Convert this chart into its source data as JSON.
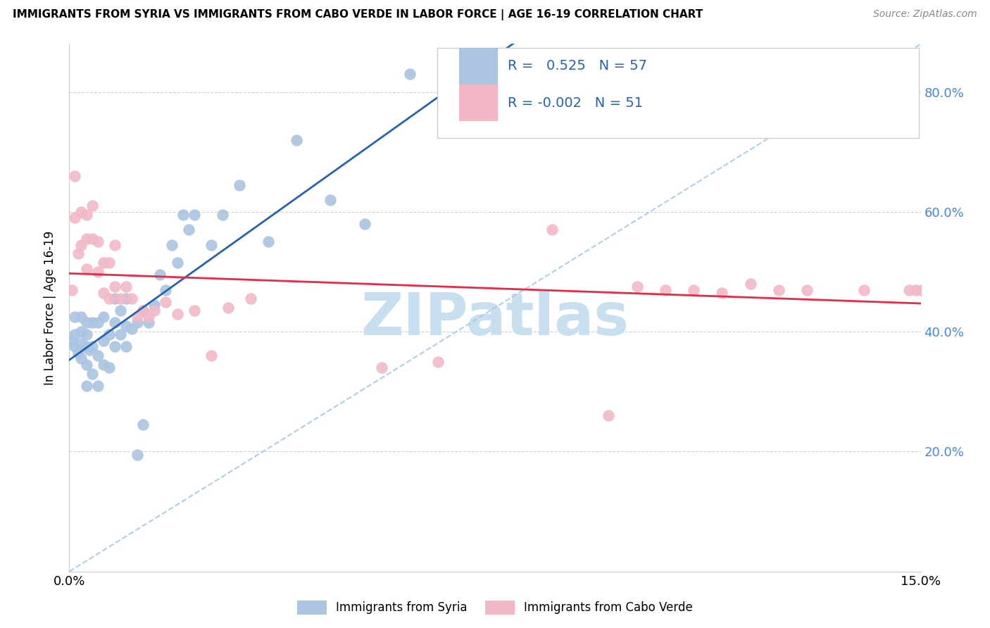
{
  "title": "IMMIGRANTS FROM SYRIA VS IMMIGRANTS FROM CABO VERDE IN LABOR FORCE | AGE 16-19 CORRELATION CHART",
  "source": "Source: ZipAtlas.com",
  "ylabel": "In Labor Force | Age 16-19",
  "xlim": [
    0.0,
    0.15
  ],
  "ylim": [
    0.0,
    0.88
  ],
  "ytick_vals": [
    0.2,
    0.4,
    0.6,
    0.8
  ],
  "legend_r_syria": "0.525",
  "legend_n_syria": "57",
  "legend_r_cabo": "-0.002",
  "legend_n_cabo": "51",
  "syria_color": "#aac4e2",
  "cabo_color": "#f2b8c6",
  "syria_line_color": "#2563b0",
  "cabo_line_color": "#e8294a",
  "diagonal_color": "#a8c8e8",
  "watermark_color": "#c8dff0",
  "syria_x": [
    0.0005,
    0.001,
    0.001,
    0.001,
    0.0015,
    0.002,
    0.002,
    0.002,
    0.002,
    0.003,
    0.003,
    0.003,
    0.003,
    0.003,
    0.0035,
    0.004,
    0.004,
    0.004,
    0.005,
    0.005,
    0.005,
    0.006,
    0.006,
    0.006,
    0.007,
    0.007,
    0.008,
    0.008,
    0.008,
    0.009,
    0.009,
    0.01,
    0.01,
    0.01,
    0.011,
    0.012,
    0.012,
    0.013,
    0.013,
    0.014,
    0.015,
    0.016,
    0.017,
    0.018,
    0.019,
    0.02,
    0.021,
    0.022,
    0.025,
    0.027,
    0.03,
    0.035,
    0.04,
    0.046,
    0.052,
    0.06,
    0.07
  ],
  "syria_y": [
    0.385,
    0.375,
    0.395,
    0.425,
    0.365,
    0.355,
    0.38,
    0.4,
    0.425,
    0.31,
    0.345,
    0.375,
    0.395,
    0.415,
    0.37,
    0.33,
    0.375,
    0.415,
    0.31,
    0.36,
    0.415,
    0.345,
    0.385,
    0.425,
    0.34,
    0.395,
    0.375,
    0.415,
    0.455,
    0.395,
    0.435,
    0.375,
    0.41,
    0.455,
    0.405,
    0.195,
    0.415,
    0.245,
    0.435,
    0.415,
    0.445,
    0.495,
    0.47,
    0.545,
    0.515,
    0.595,
    0.57,
    0.595,
    0.545,
    0.595,
    0.645,
    0.55,
    0.72,
    0.62,
    0.58,
    0.83,
    0.765
  ],
  "cabo_x": [
    0.0005,
    0.001,
    0.001,
    0.0015,
    0.002,
    0.002,
    0.003,
    0.003,
    0.003,
    0.004,
    0.004,
    0.005,
    0.005,
    0.006,
    0.006,
    0.007,
    0.007,
    0.008,
    0.008,
    0.009,
    0.01,
    0.011,
    0.012,
    0.013,
    0.014,
    0.015,
    0.017,
    0.019,
    0.022,
    0.025,
    0.028,
    0.032,
    0.055,
    0.065,
    0.085,
    0.095,
    0.1,
    0.105,
    0.11,
    0.115,
    0.12,
    0.125,
    0.13,
    0.14,
    0.148,
    0.149,
    0.15,
    0.151,
    0.152,
    0.153,
    0.154
  ],
  "cabo_y": [
    0.47,
    0.66,
    0.59,
    0.53,
    0.6,
    0.545,
    0.505,
    0.555,
    0.595,
    0.555,
    0.61,
    0.5,
    0.55,
    0.465,
    0.515,
    0.455,
    0.515,
    0.475,
    0.545,
    0.455,
    0.475,
    0.455,
    0.425,
    0.435,
    0.425,
    0.435,
    0.45,
    0.43,
    0.435,
    0.36,
    0.44,
    0.455,
    0.34,
    0.35,
    0.57,
    0.26,
    0.475,
    0.47,
    0.47,
    0.465,
    0.48,
    0.47,
    0.47,
    0.47,
    0.47,
    0.47,
    0.47,
    0.47,
    0.47,
    0.47,
    0.47
  ]
}
